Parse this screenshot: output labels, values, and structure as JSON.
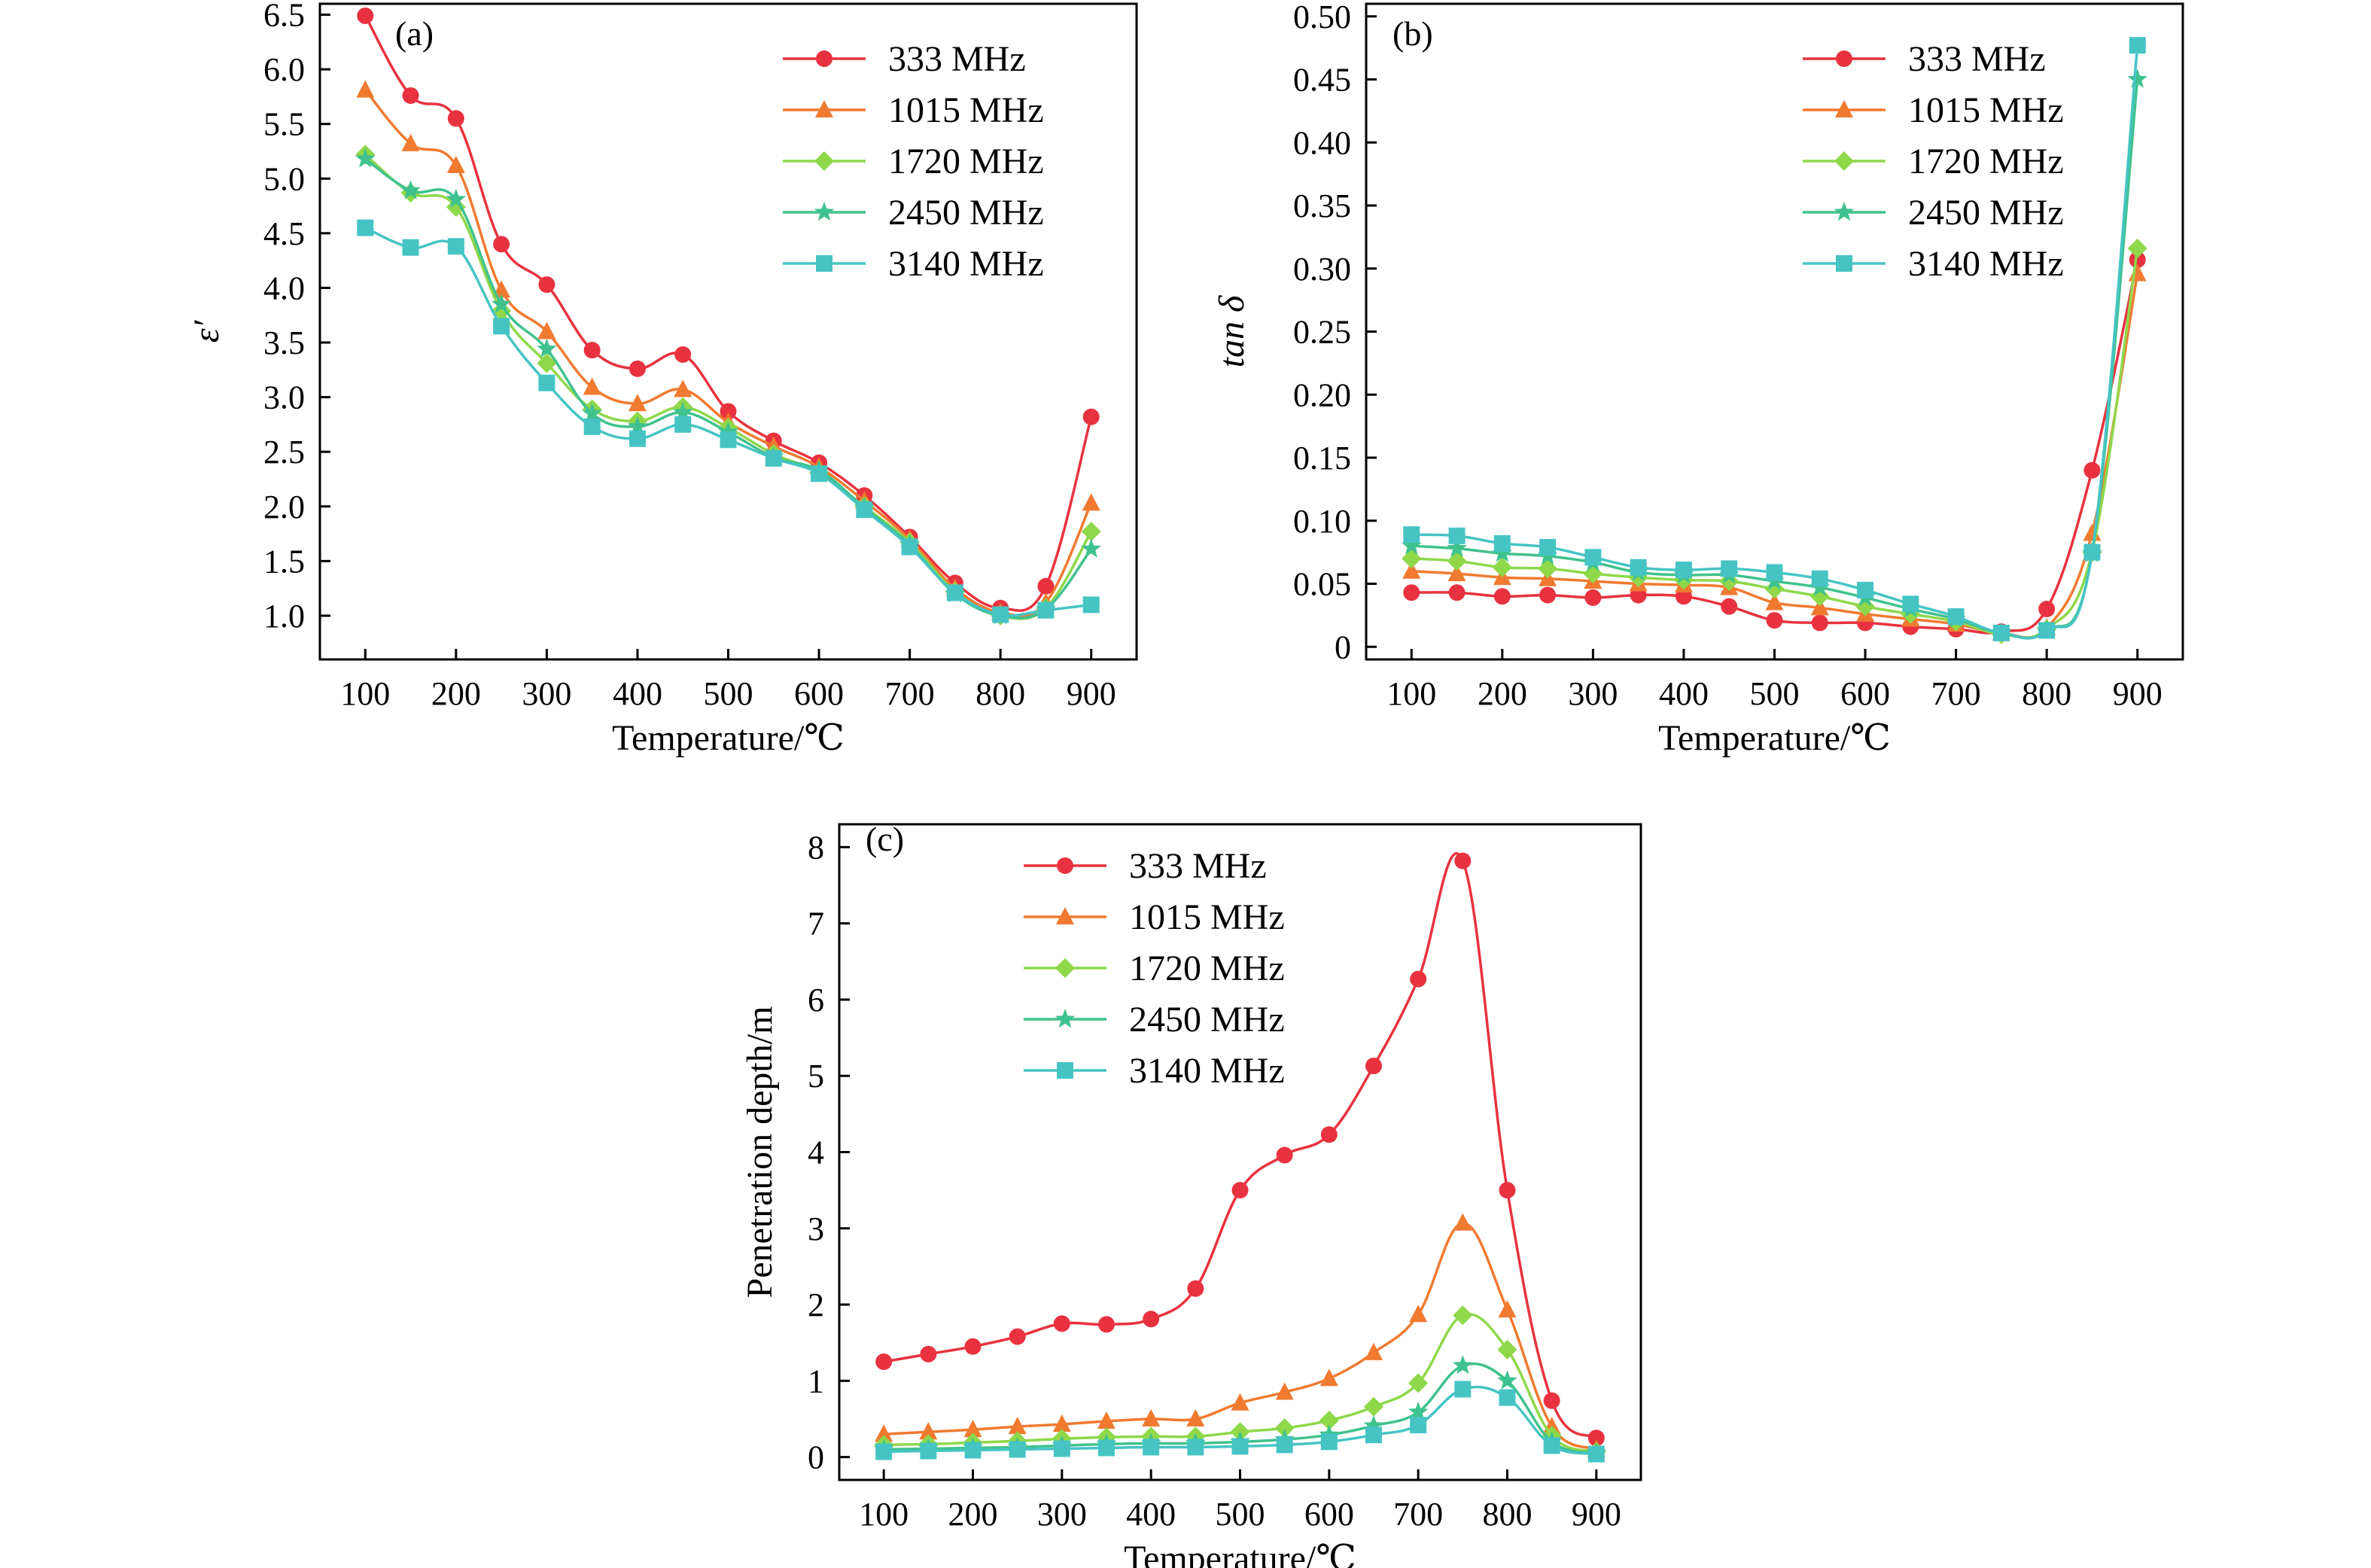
{
  "chart_data": [
    {
      "id": "a",
      "type": "line",
      "panel_label": "(a)",
      "xlabel": "Temperature/℃",
      "ylabel": "ε′",
      "x": [
        100,
        150,
        200,
        250,
        300,
        350,
        400,
        450,
        500,
        550,
        600,
        650,
        700,
        750,
        800,
        850,
        900
      ],
      "xlim": [
        50,
        950
      ],
      "ylim": [
        0.6,
        6.6
      ],
      "xticks": [
        100,
        200,
        300,
        400,
        500,
        600,
        700,
        800,
        900
      ],
      "yticks": [
        1.0,
        1.5,
        2.0,
        2.5,
        3.0,
        3.5,
        4.0,
        4.5,
        5.0,
        5.5,
        6.0,
        6.5
      ],
      "ytick_labels": [
        "1.0",
        "1.5",
        "2.0",
        "2.5",
        "3.0",
        "3.5",
        "4.0",
        "4.5",
        "5.0",
        "5.5",
        "6.0",
        "6.5"
      ],
      "legend": "top-right",
      "grid": false,
      "series": [
        {
          "name": "333 MHz",
          "color": "#e8323f",
          "marker": "circle",
          "values": [
            6.49,
            5.76,
            5.55,
            4.4,
            4.03,
            3.43,
            3.26,
            3.39,
            2.87,
            2.6,
            2.4,
            2.1,
            1.72,
            1.3,
            1.07,
            1.27,
            2.82
          ]
        },
        {
          "name": "1015 MHz",
          "color": "#f07a30",
          "marker": "triangle",
          "values": [
            5.81,
            5.32,
            5.12,
            3.98,
            3.6,
            3.09,
            2.94,
            3.07,
            2.77,
            2.55,
            2.36,
            2.05,
            1.7,
            1.25,
            1.03,
            1.12,
            2.03
          ]
        },
        {
          "name": "1720 MHz",
          "color": "#8ed84a",
          "marker": "diamond",
          "values": [
            5.22,
            4.87,
            4.74,
            3.79,
            3.31,
            2.89,
            2.78,
            2.91,
            2.72,
            2.48,
            2.31,
            2.0,
            1.67,
            1.22,
            1.0,
            1.07,
            1.77
          ]
        },
        {
          "name": "2450 MHz",
          "color": "#40c28e",
          "marker": "star",
          "values": [
            5.18,
            4.89,
            4.81,
            3.85,
            3.44,
            2.85,
            2.73,
            2.86,
            2.68,
            2.45,
            2.33,
            1.99,
            1.65,
            1.2,
            1.0,
            1.06,
            1.61
          ]
        },
        {
          "name": "3140 MHz",
          "color": "#46c4c4",
          "marker": "square",
          "values": [
            4.55,
            4.37,
            4.38,
            3.65,
            3.13,
            2.73,
            2.62,
            2.75,
            2.61,
            2.44,
            2.3,
            1.97,
            1.63,
            1.21,
            1.01,
            1.05,
            1.1
          ]
        }
      ]
    },
    {
      "id": "b",
      "type": "line",
      "panel_label": "(b)",
      "xlabel": "Temperature/℃",
      "ylabel": "tan δ",
      "x": [
        100,
        150,
        200,
        250,
        300,
        350,
        400,
        450,
        500,
        550,
        600,
        650,
        700,
        750,
        800,
        850,
        900
      ],
      "xlim": [
        50,
        950
      ],
      "ylim": [
        -0.01,
        0.51
      ],
      "xticks": [
        100,
        200,
        300,
        400,
        500,
        600,
        700,
        800,
        900
      ],
      "yticks": [
        0,
        0.05,
        0.1,
        0.15,
        0.2,
        0.25,
        0.3,
        0.35,
        0.4,
        0.45,
        0.5
      ],
      "ytick_labels": [
        "0",
        "0.05",
        "0.10",
        "0.15",
        "0.20",
        "0.25",
        "0.30",
        "0.35",
        "0.40",
        "0.45",
        "0.50"
      ],
      "legend": "top-right",
      "grid": false,
      "series": [
        {
          "name": "333 MHz",
          "color": "#e8323f",
          "marker": "circle",
          "values": [
            0.043,
            0.043,
            0.04,
            0.041,
            0.039,
            0.041,
            0.04,
            0.032,
            0.021,
            0.019,
            0.019,
            0.016,
            0.014,
            0.012,
            0.03,
            0.14,
            0.307
          ]
        },
        {
          "name": "1015 MHz",
          "color": "#f07a30",
          "marker": "triangle",
          "values": [
            0.06,
            0.058,
            0.055,
            0.054,
            0.052,
            0.05,
            0.049,
            0.047,
            0.035,
            0.031,
            0.026,
            0.022,
            0.018,
            0.011,
            0.015,
            0.09,
            0.296
          ]
        },
        {
          "name": "1720 MHz",
          "color": "#8ed84a",
          "marker": "diamond",
          "values": [
            0.07,
            0.068,
            0.063,
            0.062,
            0.058,
            0.055,
            0.053,
            0.052,
            0.046,
            0.04,
            0.032,
            0.026,
            0.02,
            0.01,
            0.014,
            0.075,
            0.316
          ]
        },
        {
          "name": "2450 MHz",
          "color": "#40c28e",
          "marker": "star",
          "values": [
            0.08,
            0.078,
            0.074,
            0.072,
            0.067,
            0.059,
            0.057,
            0.057,
            0.052,
            0.047,
            0.039,
            0.03,
            0.022,
            0.011,
            0.013,
            0.074,
            0.45
          ]
        },
        {
          "name": "3140 MHz",
          "color": "#46c4c4",
          "marker": "square",
          "values": [
            0.089,
            0.088,
            0.082,
            0.079,
            0.071,
            0.063,
            0.061,
            0.062,
            0.059,
            0.054,
            0.045,
            0.034,
            0.024,
            0.011,
            0.013,
            0.075,
            0.477
          ]
        }
      ]
    },
    {
      "id": "c",
      "type": "line",
      "panel_label": "(c)",
      "xlabel": "Temperature/℃",
      "ylabel": "Penetration depth/m",
      "x": [
        100,
        150,
        200,
        250,
        300,
        350,
        400,
        450,
        500,
        550,
        600,
        650,
        700,
        750,
        800,
        850,
        900
      ],
      "xlim": [
        50,
        950
      ],
      "ylim": [
        -0.3,
        8.3
      ],
      "xticks": [
        100,
        200,
        300,
        400,
        500,
        600,
        700,
        800,
        900
      ],
      "yticks": [
        0,
        1,
        2,
        3,
        4,
        5,
        6,
        7,
        8
      ],
      "ytick_labels": [
        "0",
        "1",
        "2",
        "3",
        "4",
        "5",
        "6",
        "7",
        "8"
      ],
      "legend": "top-left",
      "grid": false,
      "series": [
        {
          "name": "333 MHz",
          "color": "#e8323f",
          "marker": "circle",
          "values": [
            1.25,
            1.35,
            1.45,
            1.58,
            1.75,
            1.74,
            1.81,
            2.21,
            3.5,
            3.96,
            4.23,
            5.13,
            6.27,
            7.82,
            3.5,
            0.74,
            0.25
          ]
        },
        {
          "name": "1015 MHz",
          "color": "#f07a30",
          "marker": "triangle",
          "values": [
            0.3,
            0.33,
            0.36,
            0.4,
            0.43,
            0.47,
            0.5,
            0.5,
            0.71,
            0.85,
            1.03,
            1.37,
            1.87,
            3.07,
            1.93,
            0.4,
            0.1
          ]
        },
        {
          "name": "1720 MHz",
          "color": "#8ed84a",
          "marker": "diamond",
          "values": [
            0.16,
            0.17,
            0.19,
            0.21,
            0.24,
            0.26,
            0.27,
            0.27,
            0.33,
            0.38,
            0.48,
            0.66,
            0.97,
            1.86,
            1.41,
            0.28,
            0.07
          ]
        },
        {
          "name": "2450 MHz",
          "color": "#40c28e",
          "marker": "star",
          "values": [
            0.1,
            0.11,
            0.12,
            0.13,
            0.15,
            0.17,
            0.18,
            0.18,
            0.2,
            0.23,
            0.29,
            0.41,
            0.59,
            1.2,
            1.0,
            0.2,
            0.05
          ]
        },
        {
          "name": "3140 MHz",
          "color": "#46c4c4",
          "marker": "square",
          "values": [
            0.07,
            0.08,
            0.09,
            0.1,
            0.11,
            0.12,
            0.13,
            0.13,
            0.14,
            0.16,
            0.2,
            0.29,
            0.42,
            0.89,
            0.78,
            0.15,
            0.04
          ]
        }
      ]
    }
  ]
}
